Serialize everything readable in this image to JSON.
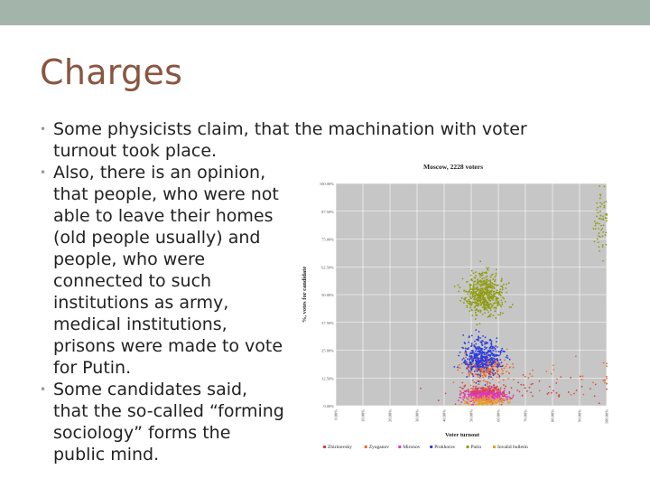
{
  "slide": {
    "title": "Charges",
    "bullets": [
      "Some physicists claim, that the machination with voter turnout took place.",
      "Also, there is an opinion, that people, who were not able to leave their homes (old people usually) and people, who were connected to such institutions as army, medical institutions, prisons were made to vote for Putin.",
      "Some candidates said, that the so-called “forming sociology” forms the public mind."
    ]
  },
  "colors": {
    "topbar": "#a3b5ab",
    "title": "#8a5540",
    "plot_bg": "#c6c6c6"
  },
  "chart_data": {
    "type": "scatter",
    "title": "Moscow, 2228 voters",
    "xlabel": "Voter turnout",
    "ylabel": "%, votes for candidate",
    "xlim": [
      0,
      100
    ],
    "ylim": [
      0,
      100
    ],
    "x_ticks": [
      "0.00%",
      "10.00%",
      "20.00%",
      "30.00%",
      "40.00%",
      "50.00%",
      "60.00%",
      "70.00%",
      "80.00%",
      "90.00%",
      "100.00%"
    ],
    "y_ticks": [
      "0.00%",
      "12.50%",
      "25.00%",
      "37.50%",
      "50.00%",
      "62.50%",
      "75.00%",
      "87.50%",
      "100.00%"
    ],
    "legend_position": "bottom",
    "series": [
      {
        "name": "Zhirinovsky",
        "color": "#d64541",
        "clusters": [
          {
            "cx": 55,
            "cy": 6,
            "sx": 4,
            "sy": 1.5,
            "n": 300
          },
          {
            "cx": 75,
            "cy": 8,
            "sx": 20,
            "sy": 3,
            "n": 45
          }
        ]
      },
      {
        "name": "Zyuganov",
        "color": "#ee6a2a",
        "clusters": [
          {
            "cx": 55,
            "cy": 17,
            "sx": 4,
            "sy": 3,
            "n": 250
          },
          {
            "cx": 80,
            "cy": 14,
            "sx": 18,
            "sy": 4,
            "n": 40
          }
        ]
      },
      {
        "name": "Mironov",
        "color": "#e036c8",
        "clusters": [
          {
            "cx": 55,
            "cy": 4,
            "sx": 4,
            "sy": 1.5,
            "n": 300
          }
        ]
      },
      {
        "name": "Prokhorov",
        "color": "#2a3ce0",
        "clusters": [
          {
            "cx": 54,
            "cy": 22,
            "sx": 3.5,
            "sy": 4,
            "n": 450
          }
        ]
      },
      {
        "name": "Putin",
        "color": "#8f9c12",
        "clusters": [
          {
            "cx": 55,
            "cy": 50,
            "sx": 3.5,
            "sy": 4.5,
            "n": 550
          },
          {
            "cx": 98,
            "cy": 82,
            "sx": 1.5,
            "sy": 8,
            "n": 60
          }
        ]
      },
      {
        "name": "Invalid bulletin",
        "color": "#e8a020",
        "clusters": [
          {
            "cx": 55,
            "cy": 2,
            "sx": 4,
            "sy": 1,
            "n": 150
          }
        ]
      }
    ]
  }
}
